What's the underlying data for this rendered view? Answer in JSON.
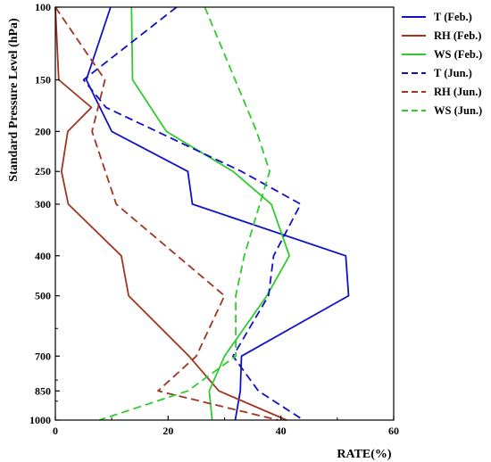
{
  "chart_data": {
    "type": "line",
    "xlabel": "RATE(%)",
    "ylabel": "Standard Pressure Level (hPa)",
    "xlim": [
      0,
      60
    ],
    "ylim": [
      1000,
      100
    ],
    "y_scale": "log",
    "grid": false,
    "legend_position": "top-right-outside",
    "xticks": [
      0,
      20,
      40,
      60
    ],
    "yticks": [
      100,
      150,
      200,
      250,
      300,
      400,
      500,
      700,
      850,
      1000
    ],
    "series": [
      {
        "name": "T (Feb.)",
        "color": "#1010c8",
        "style": "solid",
        "points": [
          [
            9.8,
            100
          ],
          [
            5.5,
            150
          ],
          [
            10,
            200
          ],
          [
            23.5,
            250
          ],
          [
            24.3,
            300
          ],
          [
            51.5,
            400
          ],
          [
            52,
            500
          ],
          [
            33,
            700
          ],
          [
            32.8,
            850
          ],
          [
            31.9,
            1000
          ]
        ]
      },
      {
        "name": "RH (Feb.)",
        "color": "#a0341e",
        "style": "solid",
        "points": [
          [
            0,
            100
          ],
          [
            0.6,
            150
          ],
          [
            6.4,
            175
          ],
          [
            2.2,
            200
          ],
          [
            1.1,
            250
          ],
          [
            2.3,
            300
          ],
          [
            11.7,
            400
          ],
          [
            13,
            500
          ],
          [
            23.7,
            700
          ],
          [
            29,
            850
          ],
          [
            41,
            1000
          ]
        ]
      },
      {
        "name": "WS (Feb.)",
        "color": "#2ecc2e",
        "style": "solid",
        "points": [
          [
            13.5,
            100
          ],
          [
            13.7,
            150
          ],
          [
            19.7,
            200
          ],
          [
            31.5,
            250
          ],
          [
            38.3,
            300
          ],
          [
            41.5,
            400
          ],
          [
            37.5,
            500
          ],
          [
            30,
            700
          ],
          [
            27.3,
            850
          ],
          [
            27.8,
            1000
          ]
        ]
      },
      {
        "name": "T (Jun.)",
        "color": "#1010c8",
        "style": "dashed",
        "points": [
          [
            21.5,
            100
          ],
          [
            5,
            150
          ],
          [
            9,
            175
          ],
          [
            33,
            250
          ],
          [
            43.5,
            300
          ],
          [
            38.7,
            400
          ],
          [
            37.8,
            500
          ],
          [
            31.5,
            700
          ],
          [
            36,
            850
          ],
          [
            44,
            1000
          ]
        ]
      },
      {
        "name": "RH (Jun.)",
        "color": "#a0341e",
        "style": "dashed",
        "points": [
          [
            0,
            100
          ],
          [
            8.8,
            150
          ],
          [
            6.5,
            200
          ],
          [
            10.8,
            300
          ],
          [
            30,
            500
          ],
          [
            25,
            700
          ],
          [
            18.2,
            850
          ],
          [
            39.5,
            1000
          ]
        ]
      },
      {
        "name": "WS (Jun.)",
        "color": "#2ecc2e",
        "style": "dashed",
        "points": [
          [
            26.5,
            100
          ],
          [
            35.7,
            200
          ],
          [
            38,
            250
          ],
          [
            33.5,
            400
          ],
          [
            32,
            500
          ],
          [
            32,
            700
          ],
          [
            23.5,
            850
          ],
          [
            7.8,
            1000
          ]
        ]
      }
    ]
  }
}
